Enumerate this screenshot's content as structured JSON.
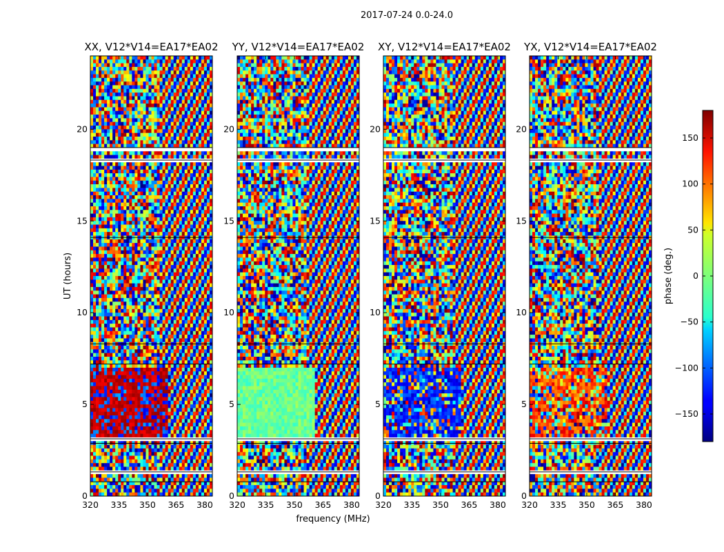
{
  "figure": {
    "suptitle": "2017-07-24 0.0-24.0",
    "xlabel": "frequency (MHz)",
    "ylabel": "UT (hours)",
    "colorbar_label": "phase (deg.)"
  },
  "chart_data": {
    "type": "heatmap",
    "title": "2017-07-24 0.0-24.0",
    "xlabel": "frequency (MHz)",
    "ylabel": "UT (hours)",
    "xlim": [
      320,
      384
    ],
    "ylim": [
      0,
      24
    ],
    "x_ticks": [
      320,
      335,
      350,
      365,
      380
    ],
    "y_ticks": [
      0,
      5,
      10,
      15,
      20
    ],
    "colormap": "jet",
    "colorbar": {
      "label": "phase (deg.)",
      "range": [
        -180,
        180
      ],
      "ticks": [
        -150,
        -100,
        -50,
        0,
        50,
        100,
        150
      ]
    },
    "panels": [
      {
        "title": "XX, V12*V14=EA17*EA02",
        "pol": "XX"
      },
      {
        "title": "YY, V12*V14=EA17*EA02",
        "pol": "YY"
      },
      {
        "title": "XY, V12*V14=EA17*EA02",
        "pol": "XY"
      },
      {
        "title": "YX, V12*V14=EA17*EA02",
        "pol": "YX"
      }
    ],
    "flagged_gaps_hours": [
      [
        0.7,
        0.78
      ],
      [
        1.25,
        1.32
      ],
      [
        2.78,
        2.88
      ],
      [
        3.0,
        3.12
      ],
      [
        7.1,
        7.2
      ],
      [
        8.2,
        8.3
      ],
      [
        14.0,
        14.1
      ],
      [
        18.2,
        18.32
      ],
      [
        18.85,
        19.0
      ]
    ],
    "dense_fringe_rows_hours": [
      [
        3.2,
        7.0
      ]
    ]
  }
}
